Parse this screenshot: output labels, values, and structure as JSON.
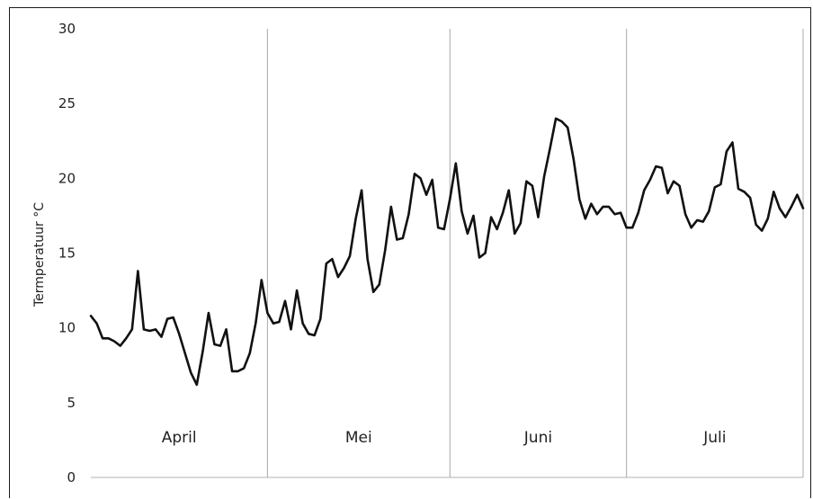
{
  "chart_data": {
    "type": "line",
    "title": "",
    "xlabel": "",
    "ylabel": "Termperatuur °C",
    "ylim": [
      0,
      30
    ],
    "yticks": [
      0,
      5,
      10,
      15,
      20,
      25,
      30
    ],
    "grid": "vertical month separators",
    "months": [
      "April",
      "Mei",
      "Juni",
      "Juli"
    ],
    "month_lengths": [
      30,
      31,
      30,
      31
    ],
    "series": [
      {
        "values": [
          10.8,
          10.3,
          9.3,
          9.3,
          9.1,
          8.8,
          9.3,
          9.9,
          13.8,
          9.9,
          9.8,
          9.9,
          9.4,
          10.6,
          10.7,
          9.6,
          8.3,
          7.0,
          6.2,
          8.4,
          11.0,
          8.9,
          8.8,
          9.9,
          7.1,
          7.1,
          7.3,
          8.3,
          10.3,
          13.2,
          11.0,
          10.3,
          10.4,
          11.8,
          9.9,
          12.5,
          10.3,
          9.6,
          9.5,
          10.6,
          14.3,
          14.6,
          13.4,
          14.0,
          14.8,
          17.3,
          19.2,
          14.6,
          12.4,
          12.9,
          15.2,
          18.1,
          15.9,
          16.0,
          17.6,
          20.3,
          20.0,
          18.9,
          19.9,
          16.7,
          16.6,
          18.6,
          21.0,
          17.8,
          16.3,
          17.5,
          14.7,
          15.0,
          17.4,
          16.6,
          17.7,
          19.2,
          16.3,
          17.0,
          19.8,
          19.5,
          17.4,
          20.1,
          22.0,
          24.0,
          23.8,
          23.4,
          21.3,
          18.6,
          17.3,
          18.3,
          17.6,
          18.1,
          18.1,
          17.6,
          17.7,
          16.7,
          16.7,
          17.7,
          19.2,
          19.9,
          20.8,
          20.7,
          19.0,
          19.8,
          19.5,
          17.6,
          16.7,
          17.2,
          17.1,
          17.8,
          19.4,
          19.6,
          21.8,
          22.4,
          19.3,
          19.1,
          18.7,
          16.9,
          16.5,
          17.3,
          19.1,
          18.0,
          17.4,
          18.1,
          18.9,
          18.0
        ]
      }
    ]
  },
  "style": {
    "line_color": "#111111",
    "separator_color": "#a8a8a8",
    "axis_color": "#b0b0b0"
  }
}
